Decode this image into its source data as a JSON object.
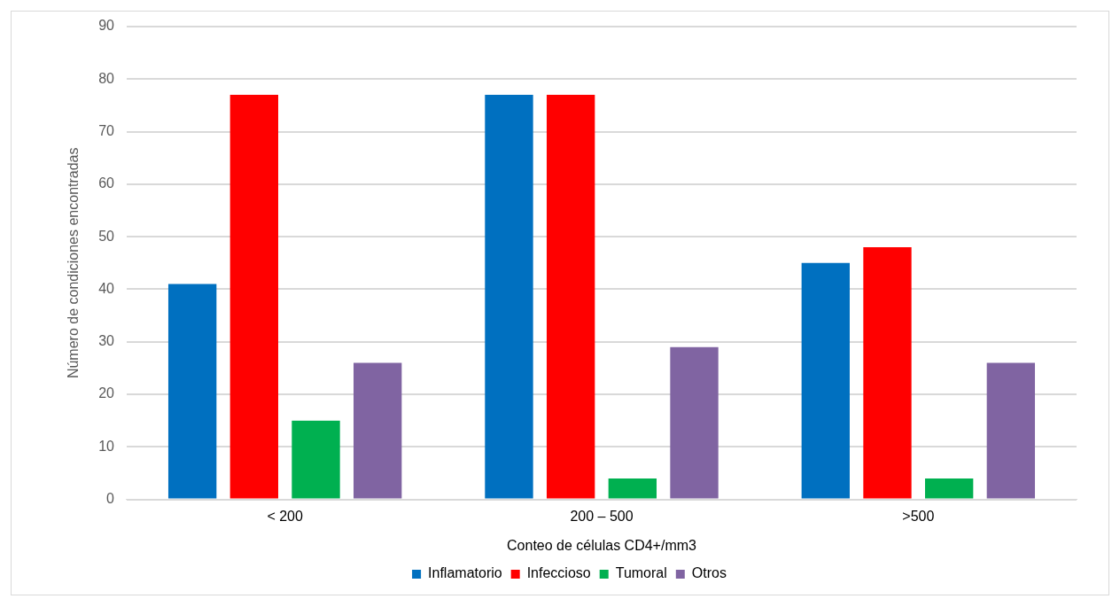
{
  "chart_data": {
    "type": "bar",
    "xlabel": "Conteo de células CD4+/mm3",
    "ylabel": "Número de condiciones encontradas",
    "categories": [
      "< 200",
      "200 – 500",
      ">500"
    ],
    "series": [
      {
        "name": "Inflamatorio",
        "color": "#0070c0",
        "values": [
          41,
          77,
          45
        ]
      },
      {
        "name": "Infeccioso",
        "color": "#ff0000",
        "values": [
          77,
          77,
          48
        ]
      },
      {
        "name": "Tumoral",
        "color": "#00b050",
        "values": [
          15,
          4,
          4
        ]
      },
      {
        "name": "Otros",
        "color": "#8064a2",
        "values": [
          26,
          29,
          26
        ]
      }
    ],
    "ylim": [
      0,
      90
    ],
    "yticks": [
      0,
      10,
      20,
      30,
      40,
      50,
      60,
      70,
      80,
      90
    ],
    "grid": "y",
    "legend": "bottom"
  }
}
